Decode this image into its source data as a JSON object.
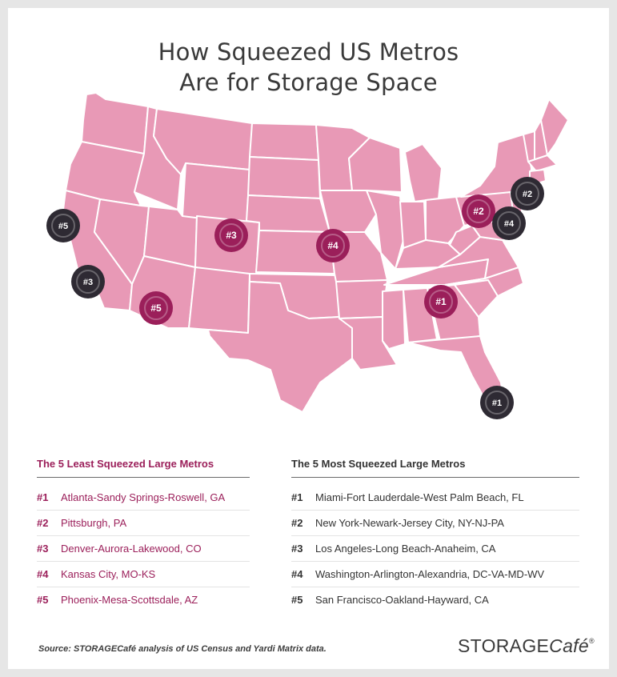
{
  "title": {
    "line1": "How Squeezed US Metros",
    "line2": "Are for Storage Space"
  },
  "colors": {
    "state_fill": "#e899b6",
    "state_border": "#ffffff",
    "least_marker": "#9b1f5a",
    "most_marker": "#2e2a33",
    "least_text": "#9b1f5a",
    "most_text": "#333333"
  },
  "least": {
    "heading": "The 5 Least Squeezed Large Metros",
    "items": [
      {
        "rank": "#1",
        "name": "Atlanta-Sandy Springs-Roswell, GA"
      },
      {
        "rank": "#2",
        "name": "Pittsburgh, PA"
      },
      {
        "rank": "#3",
        "name": "Denver-Aurora-Lakewood, CO"
      },
      {
        "rank": "#4",
        "name": "Kansas City, MO-KS"
      },
      {
        "rank": "#5",
        "name": "Phoenix-Mesa-Scottsdale, AZ"
      }
    ]
  },
  "most": {
    "heading": "The 5 Most Squeezed Large Metros",
    "items": [
      {
        "rank": "#1",
        "name": "Miami-Fort Lauderdale-West Palm Beach, FL"
      },
      {
        "rank": "#2",
        "name": "New York-Newark-Jersey City, NY-NJ-PA"
      },
      {
        "rank": "#3",
        "name": "Los Angeles-Long Beach-Anaheim, CA"
      },
      {
        "rank": "#4",
        "name": "Washington-Arlington-Alexandria, DC-VA-MD-WV"
      },
      {
        "rank": "#5",
        "name": "San Francisco-Oakland-Hayward, CA"
      }
    ]
  },
  "map_markers": [
    {
      "label": "#1",
      "group": "least",
      "metro": "Atlanta"
    },
    {
      "label": "#2",
      "group": "least",
      "metro": "Pittsburgh"
    },
    {
      "label": "#3",
      "group": "least",
      "metro": "Denver"
    },
    {
      "label": "#4",
      "group": "least",
      "metro": "Kansas City"
    },
    {
      "label": "#5",
      "group": "least",
      "metro": "Phoenix"
    },
    {
      "label": "#1",
      "group": "most",
      "metro": "Miami"
    },
    {
      "label": "#2",
      "group": "most",
      "metro": "New York"
    },
    {
      "label": "#3",
      "group": "most",
      "metro": "Los Angeles"
    },
    {
      "label": "#4",
      "group": "most",
      "metro": "Washington"
    },
    {
      "label": "#5",
      "group": "most",
      "metro": "San Francisco"
    }
  ],
  "source": "Source: STORAGECafé analysis of US Census and Yardi Matrix data.",
  "logo": {
    "part1": "STORAGE",
    "part2": "Café",
    "mark": "®"
  }
}
